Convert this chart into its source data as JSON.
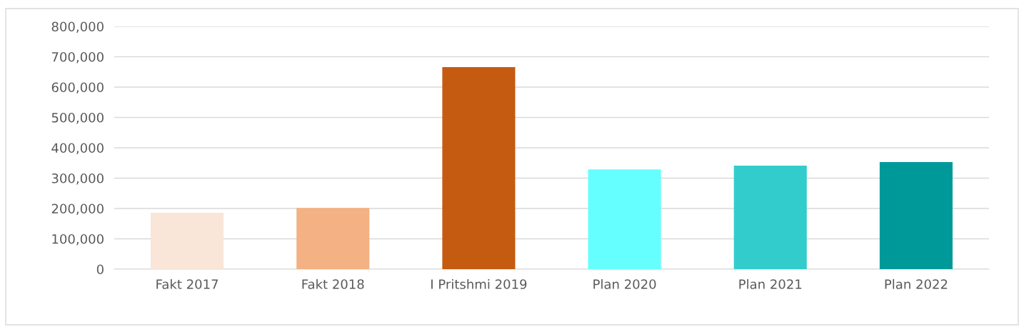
{
  "chart_data": {
    "type": "bar",
    "categories": [
      "Fakt 2017",
      "Fakt 2018",
      "I Pritshmi 2019",
      "Plan 2020",
      "Plan 2021",
      "Plan 2022"
    ],
    "values": [
      186000,
      202000,
      666000,
      329000,
      341000,
      353000
    ],
    "colors": [
      "#fae5d9",
      "#f4b183",
      "#c55a11",
      "#66ffff",
      "#33cccc",
      "#009999"
    ],
    "ylim": [
      0,
      800000
    ],
    "yticks": [
      {
        "value": 0,
        "label": "0"
      },
      {
        "value": 100000,
        "label": "100,000"
      },
      {
        "value": 200000,
        "label": "200,000"
      },
      {
        "value": 300000,
        "label": "300,000"
      },
      {
        "value": 400000,
        "label": "400,000"
      },
      {
        "value": 500000,
        "label": "500,000"
      },
      {
        "value": 600000,
        "label": "600,000"
      },
      {
        "value": 700000,
        "label": "700,000"
      },
      {
        "value": 800000,
        "label": "800,000"
      }
    ],
    "grid": "y",
    "legend": false
  }
}
